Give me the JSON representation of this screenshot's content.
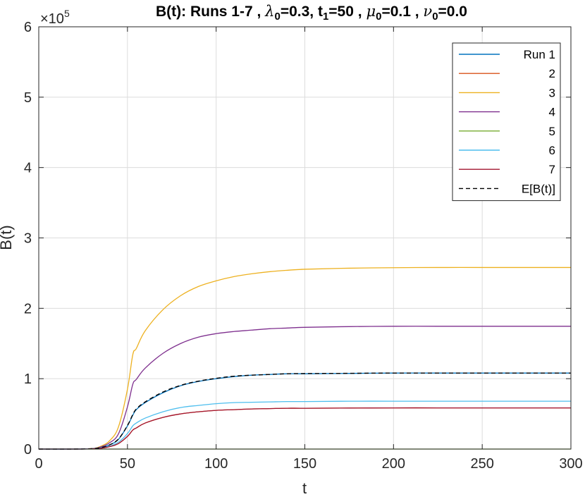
{
  "chart_data": {
    "type": "line",
    "title": {
      "parts": [
        {
          "text": "B(t): Runs 1-7 , "
        },
        {
          "text": "λ",
          "italic": true
        },
        {
          "text": "0",
          "sub": true
        },
        {
          "text": "=0.3,  t"
        },
        {
          "text": "1",
          "sub": true
        },
        {
          "text": "=50 , "
        },
        {
          "text": "μ",
          "italic": true
        },
        {
          "text": "0",
          "sub": true
        },
        {
          "text": "=0.1 , "
        },
        {
          "text": "ν",
          "italic": true
        },
        {
          "text": "0",
          "sub": true
        },
        {
          "text": "=0.0"
        }
      ]
    },
    "xlabel": "t",
    "ylabel": "B(t)",
    "xlim": [
      0,
      300
    ],
    "ylim": [
      0,
      6
    ],
    "y_exponent": {
      "base": "×10",
      "power": "5"
    },
    "xticks": [
      0,
      50,
      100,
      150,
      200,
      250,
      300
    ],
    "yticks": [
      0,
      1,
      2,
      3,
      4,
      5,
      6
    ],
    "grid": true,
    "legend_position": "top-right",
    "x": [
      0,
      20,
      30,
      35,
      40,
      45,
      50,
      53,
      55,
      60,
      70,
      80,
      90,
      100,
      110,
      120,
      130,
      140,
      150,
      175,
      200,
      225,
      250,
      275,
      300
    ],
    "series": [
      {
        "name": "Run 1",
        "color": "#0072BD",
        "dash": false,
        "values": [
          0,
          0,
          0.005,
          0.02,
          0.06,
          0.14,
          0.33,
          0.48,
          0.56,
          0.66,
          0.8,
          0.9,
          0.96,
          1.0,
          1.03,
          1.05,
          1.06,
          1.07,
          1.07,
          1.075,
          1.08,
          1.08,
          1.08,
          1.08,
          1.08
        ]
      },
      {
        "name": "2",
        "color": "#D95319",
        "dash": false,
        "values": [
          0,
          0,
          0.003,
          0.012,
          0.035,
          0.08,
          0.18,
          0.27,
          0.3,
          0.37,
          0.45,
          0.5,
          0.53,
          0.55,
          0.56,
          0.57,
          0.575,
          0.58,
          0.58,
          0.583,
          0.585,
          0.585,
          0.585,
          0.585,
          0.585
        ]
      },
      {
        "name": "3",
        "color": "#EDB120",
        "dash": false,
        "values": [
          0,
          0,
          0.008,
          0.04,
          0.12,
          0.32,
          0.85,
          1.34,
          1.43,
          1.68,
          1.98,
          2.18,
          2.31,
          2.39,
          2.45,
          2.49,
          2.52,
          2.54,
          2.555,
          2.57,
          2.577,
          2.58,
          2.58,
          2.58,
          2.58
        ]
      },
      {
        "name": "4",
        "color": "#7E2F8E",
        "dash": false,
        "values": [
          0,
          0,
          0.006,
          0.03,
          0.09,
          0.22,
          0.6,
          0.92,
          0.99,
          1.15,
          1.36,
          1.5,
          1.59,
          1.64,
          1.67,
          1.69,
          1.71,
          1.72,
          1.73,
          1.74,
          1.745,
          1.745,
          1.745,
          1.745,
          1.745
        ]
      },
      {
        "name": "5",
        "color": "#77AC30",
        "dash": false,
        "values": [
          0,
          0,
          0,
          0,
          0,
          0,
          0,
          0,
          0,
          0,
          0,
          0,
          0,
          0,
          0,
          0,
          0,
          0,
          0,
          0,
          0,
          0,
          0,
          0,
          0
        ]
      },
      {
        "name": "6",
        "color": "#4DBEEE",
        "dash": false,
        "values": [
          0,
          0,
          0.004,
          0.015,
          0.04,
          0.1,
          0.22,
          0.33,
          0.37,
          0.44,
          0.53,
          0.59,
          0.62,
          0.645,
          0.66,
          0.665,
          0.67,
          0.675,
          0.675,
          0.68,
          0.68,
          0.68,
          0.68,
          0.68,
          0.68
        ]
      },
      {
        "name": "7",
        "color": "#A2142F",
        "dash": false,
        "values": [
          0,
          0,
          0.003,
          0.012,
          0.035,
          0.08,
          0.18,
          0.27,
          0.3,
          0.37,
          0.45,
          0.5,
          0.53,
          0.55,
          0.56,
          0.57,
          0.575,
          0.58,
          0.58,
          0.583,
          0.585,
          0.585,
          0.585,
          0.585,
          0.585
        ]
      },
      {
        "name": "E[B(t)]",
        "color": "#000000",
        "dash": true,
        "values": [
          0,
          0,
          0.005,
          0.02,
          0.06,
          0.145,
          0.335,
          0.49,
          0.57,
          0.67,
          0.81,
          0.905,
          0.965,
          1.005,
          1.035,
          1.05,
          1.06,
          1.07,
          1.073,
          1.076,
          1.08,
          1.08,
          1.08,
          1.08,
          1.08
        ]
      }
    ]
  }
}
